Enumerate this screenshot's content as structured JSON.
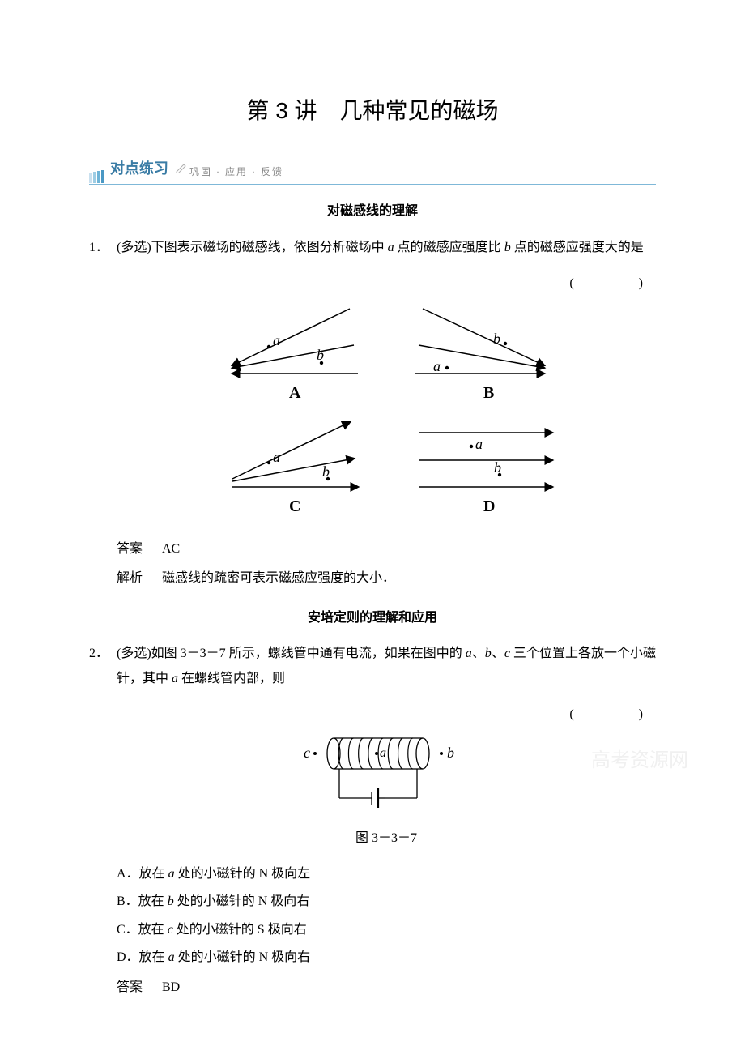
{
  "title": "第 3 讲　几种常见的磁场",
  "section_bar": {
    "main": "对点练习",
    "sub": "巩固 · 应用 · 反馈",
    "border_color": "#7fb8d8",
    "marker_bars": [
      "#c9e0ef",
      "#9ecde4",
      "#6fb4d7",
      "#4a98c4"
    ]
  },
  "subsections": {
    "s1": "对磁感线的理解",
    "s2": "安培定则的理解和应用"
  },
  "q1": {
    "number": "1．",
    "text_parts": {
      "p1": "(多选)下图表示磁场的磁感线，依图分析磁场中 ",
      "a": "a",
      "p2": " 点的磁感应强度比 ",
      "b": "b",
      "p3": " 点的磁感应强度大的是"
    },
    "paren": "(　　)",
    "answer_label": "答案",
    "answer_value": "AC",
    "analysis_label": "解析",
    "analysis_value": "磁感线的疏密可表示磁感应强度的大小．",
    "diagram": {
      "stroke": "#000000",
      "label_font": 18,
      "label_bold_font": 20,
      "panels": {
        "A": {
          "label": "A",
          "a": "a",
          "b": "b"
        },
        "B": {
          "label": "B",
          "a": "a",
          "b": "b"
        },
        "C": {
          "label": "C",
          "a": "a",
          "b": "b"
        },
        "D": {
          "label": "D",
          "a": "a",
          "b": "b"
        }
      }
    }
  },
  "q2": {
    "number": "2．",
    "text_parts": {
      "p1": "(多选)如图 3－3－7 所示，螺线管中通有电流，如果在图中的 ",
      "a": "a",
      "p2": "、",
      "b": "b",
      "p3": "、",
      "c": "c",
      "p4": " 三个位置上各放一个小磁针，其中 ",
      "a2": "a",
      "p5": " 在螺线管内部，则"
    },
    "paren": "(　　)",
    "fig_caption": "图 3－3－7",
    "options": {
      "A": {
        "pre": "A．放在 ",
        "m": "a",
        "post": " 处的小磁针的 N 极向左"
      },
      "B": {
        "pre": "B．放在 ",
        "m": "b",
        "post": " 处的小磁针的 N 极向右"
      },
      "C": {
        "pre": "C．放在 ",
        "m": "c",
        "post": " 处的小磁针的 S 极向右"
      },
      "D": {
        "pre": "D．放在 ",
        "m": "a",
        "post": " 处的小磁针的 N 极向右"
      }
    },
    "answer_label": "答案",
    "answer_value": "BD",
    "diagram": {
      "stroke": "#000000",
      "c_label": "c",
      "a_label": "a",
      "b_label": "b",
      "coil_turns": 9
    }
  },
  "watermark_text": "高考资源网"
}
